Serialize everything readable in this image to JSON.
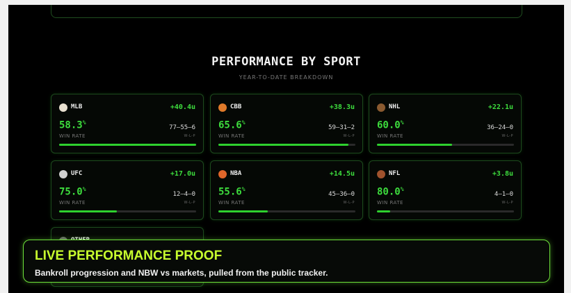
{
  "section": {
    "title": "PERFORMANCE BY SPORT",
    "subtitle": "YEAR-TO-DATE BREAKDOWN",
    "win_rate_caption": "WIN RATE",
    "record_caption": "W-L-P"
  },
  "cards": [
    {
      "sport": "MLB",
      "units": {
        "value": 40.4,
        "label": "+40.4u"
      },
      "win_rate": {
        "value": 58.3,
        "label": "58.3",
        "unit": "%"
      },
      "record": "77–55–6"
    },
    {
      "sport": "CBB",
      "units": {
        "value": 38.3,
        "label": "+38.3u"
      },
      "win_rate": {
        "value": 65.6,
        "label": "65.6",
        "unit": "%"
      },
      "record": "59–31–2"
    },
    {
      "sport": "NHL",
      "units": {
        "value": 22.1,
        "label": "+22.1u"
      },
      "win_rate": {
        "value": 60.0,
        "label": "60.0",
        "unit": "%"
      },
      "record": "36–24–0"
    },
    {
      "sport": "UFC",
      "units": {
        "value": 17.0,
        "label": "+17.0u"
      },
      "win_rate": {
        "value": 75.0,
        "label": "75.0",
        "unit": "%"
      },
      "record": "12–4–0"
    },
    {
      "sport": "NBA",
      "units": {
        "value": 14.5,
        "label": "+14.5u"
      },
      "win_rate": {
        "value": 55.6,
        "label": "55.6",
        "unit": "%"
      },
      "record": "45–36–0"
    },
    {
      "sport": "NFL",
      "units": {
        "value": 3.8,
        "label": "+3.8u"
      },
      "win_rate": {
        "value": 80.0,
        "label": "80.0",
        "unit": "%"
      },
      "record": "4–1–0"
    }
  ],
  "partial_card": {
    "sport": "OTHER"
  },
  "banner": {
    "title": "LIVE PERFORMANCE PROOF",
    "text": "Bankroll progression and NBW vs markets, pulled from the public tracker."
  }
}
